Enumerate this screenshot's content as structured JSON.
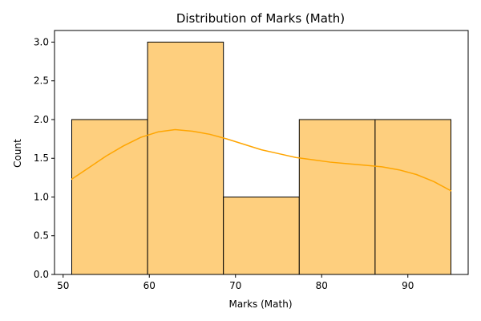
{
  "chart_data": {
    "type": "histogram",
    "title": "Distribution of Marks (Math)",
    "xlabel": "Marks (Math)",
    "ylabel": "Count",
    "xlim": [
      49,
      97
    ],
    "ylim": [
      0,
      3.15
    ],
    "xticks": [
      50,
      60,
      70,
      80,
      90
    ],
    "yticks": [
      0.0,
      0.5,
      1.0,
      1.5,
      2.0,
      2.5,
      3.0
    ],
    "ytick_labels": [
      "0.0",
      "0.5",
      "1.0",
      "1.5",
      "2.0",
      "2.5",
      "3.0"
    ],
    "bins": [
      {
        "x0": 51.0,
        "x1": 59.8,
        "count": 2
      },
      {
        "x0": 59.8,
        "x1": 68.6,
        "count": 3
      },
      {
        "x0": 68.6,
        "x1": 77.4,
        "count": 1
      },
      {
        "x0": 77.4,
        "x1": 86.2,
        "count": 2
      },
      {
        "x0": 86.2,
        "x1": 95.0,
        "count": 2
      }
    ],
    "kde": {
      "x": [
        51,
        53,
        55,
        57,
        59,
        61,
        63,
        65,
        67,
        69,
        71,
        73,
        75,
        77,
        79,
        81,
        83,
        85,
        87,
        89,
        91,
        93,
        95
      ],
      "y": [
        1.23,
        1.38,
        1.53,
        1.66,
        1.77,
        1.84,
        1.87,
        1.85,
        1.81,
        1.75,
        1.68,
        1.61,
        1.56,
        1.51,
        1.48,
        1.45,
        1.43,
        1.41,
        1.39,
        1.35,
        1.29,
        1.2,
        1.08
      ]
    },
    "colors": {
      "bar_fill": "#fecf7e",
      "bar_edge": "#000000",
      "kde_line": "#ffa500"
    },
    "grid": false,
    "legend": "none"
  }
}
